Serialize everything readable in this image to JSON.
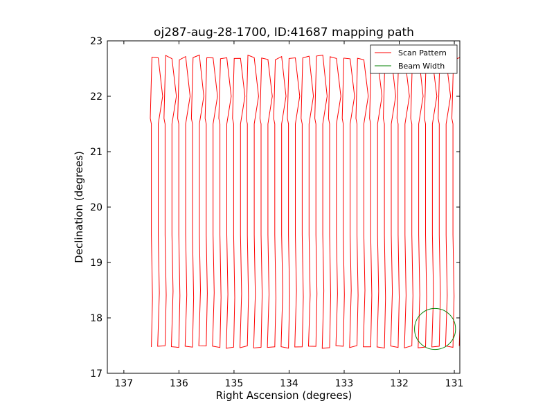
{
  "chart_data": {
    "type": "line",
    "title": "oj287-aug-28-1700, ID:41687 mapping path",
    "xlabel": "Right Ascension (degrees)",
    "ylabel": "Declination (degrees)",
    "xlim": [
      137.3,
      130.9
    ],
    "ylim": [
      17,
      23
    ],
    "x_reversed": true,
    "xticks": [
      137,
      136,
      135,
      134,
      133,
      132,
      131
    ],
    "yticks": [
      17,
      18,
      19,
      20,
      21,
      22,
      23
    ],
    "xtick_labels": [
      "137",
      "136",
      "135",
      "134",
      "133",
      "132",
      "131"
    ],
    "ytick_labels": [
      "17",
      "18",
      "19",
      "20",
      "21",
      "22",
      "23"
    ],
    "grid": false,
    "legend": {
      "position": "top-right",
      "entries": [
        {
          "label": "Scan Pattern",
          "color": "#ff0000"
        },
        {
          "label": "Beam Width",
          "color": "#008000"
        }
      ]
    },
    "series": [
      {
        "name": "Scan Pattern",
        "kind": "raster-scan",
        "color": "#ff0000",
        "ra_start": 136.5,
        "ra_end": 130.9,
        "num_sweeps": 46,
        "dec_low": 17.5,
        "dec_high": 22.65
      },
      {
        "name": "Beam Width",
        "kind": "circle",
        "color": "#008000",
        "center": [
          131.35,
          17.8
        ],
        "radius_dec": 0.37
      }
    ]
  }
}
